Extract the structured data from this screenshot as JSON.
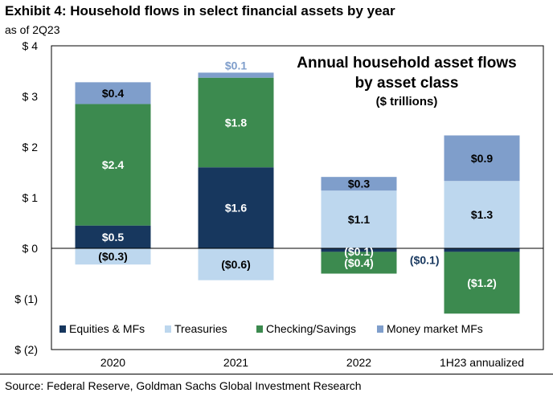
{
  "header": {
    "title": "Exhibit 4: Household flows in select financial assets by year",
    "subtitle": "as of 2Q23"
  },
  "footer": {
    "source": "Source: Federal Reserve, Goldman Sachs Global Investment Research"
  },
  "chart_data": {
    "type": "bar",
    "stacked": true,
    "title_lines": [
      "Annual household asset flows",
      "by asset class",
      "($ trillions)"
    ],
    "categories": [
      "2020",
      "2021",
      "2022",
      "1H23 annualized"
    ],
    "y_tick_labels": [
      "$ 4",
      "$ 3",
      "$ 2",
      "$ 1",
      "$ 0",
      "$ (1)",
      "$ (2)"
    ],
    "y_tick_values": [
      4,
      3,
      2,
      1,
      0,
      -1,
      -2
    ],
    "ylim": [
      -2,
      4
    ],
    "grid": false,
    "legend_position": "bottom",
    "series": [
      {
        "name": "Equities & MFs",
        "color": "#17375e",
        "values": [
          0.45,
          1.6,
          -0.07,
          -0.07
        ],
        "labels": [
          "$0.5",
          "$1.6",
          "($0.1)",
          "($0.1)"
        ]
      },
      {
        "name": "Treasuries",
        "color": "#bdd7ee",
        "values": [
          -0.32,
          -0.63,
          1.14,
          1.33
        ],
        "labels": [
          "($0.3)",
          "($0.6)",
          "$1.1",
          "$1.3"
        ]
      },
      {
        "name": "Checking/Savings",
        "color": "#3c8a4f",
        "values": [
          2.4,
          1.77,
          -0.43,
          -1.22
        ],
        "labels": [
          "$2.4",
          "$1.8",
          "($0.4)",
          "($1.2)"
        ]
      },
      {
        "name": "Money market MFs",
        "color": "#7f9ecb",
        "values": [
          0.43,
          0.1,
          0.27,
          0.9
        ],
        "labels": [
          "$0.4",
          "$0.1",
          "$0.3",
          "$0.9"
        ]
      }
    ]
  }
}
